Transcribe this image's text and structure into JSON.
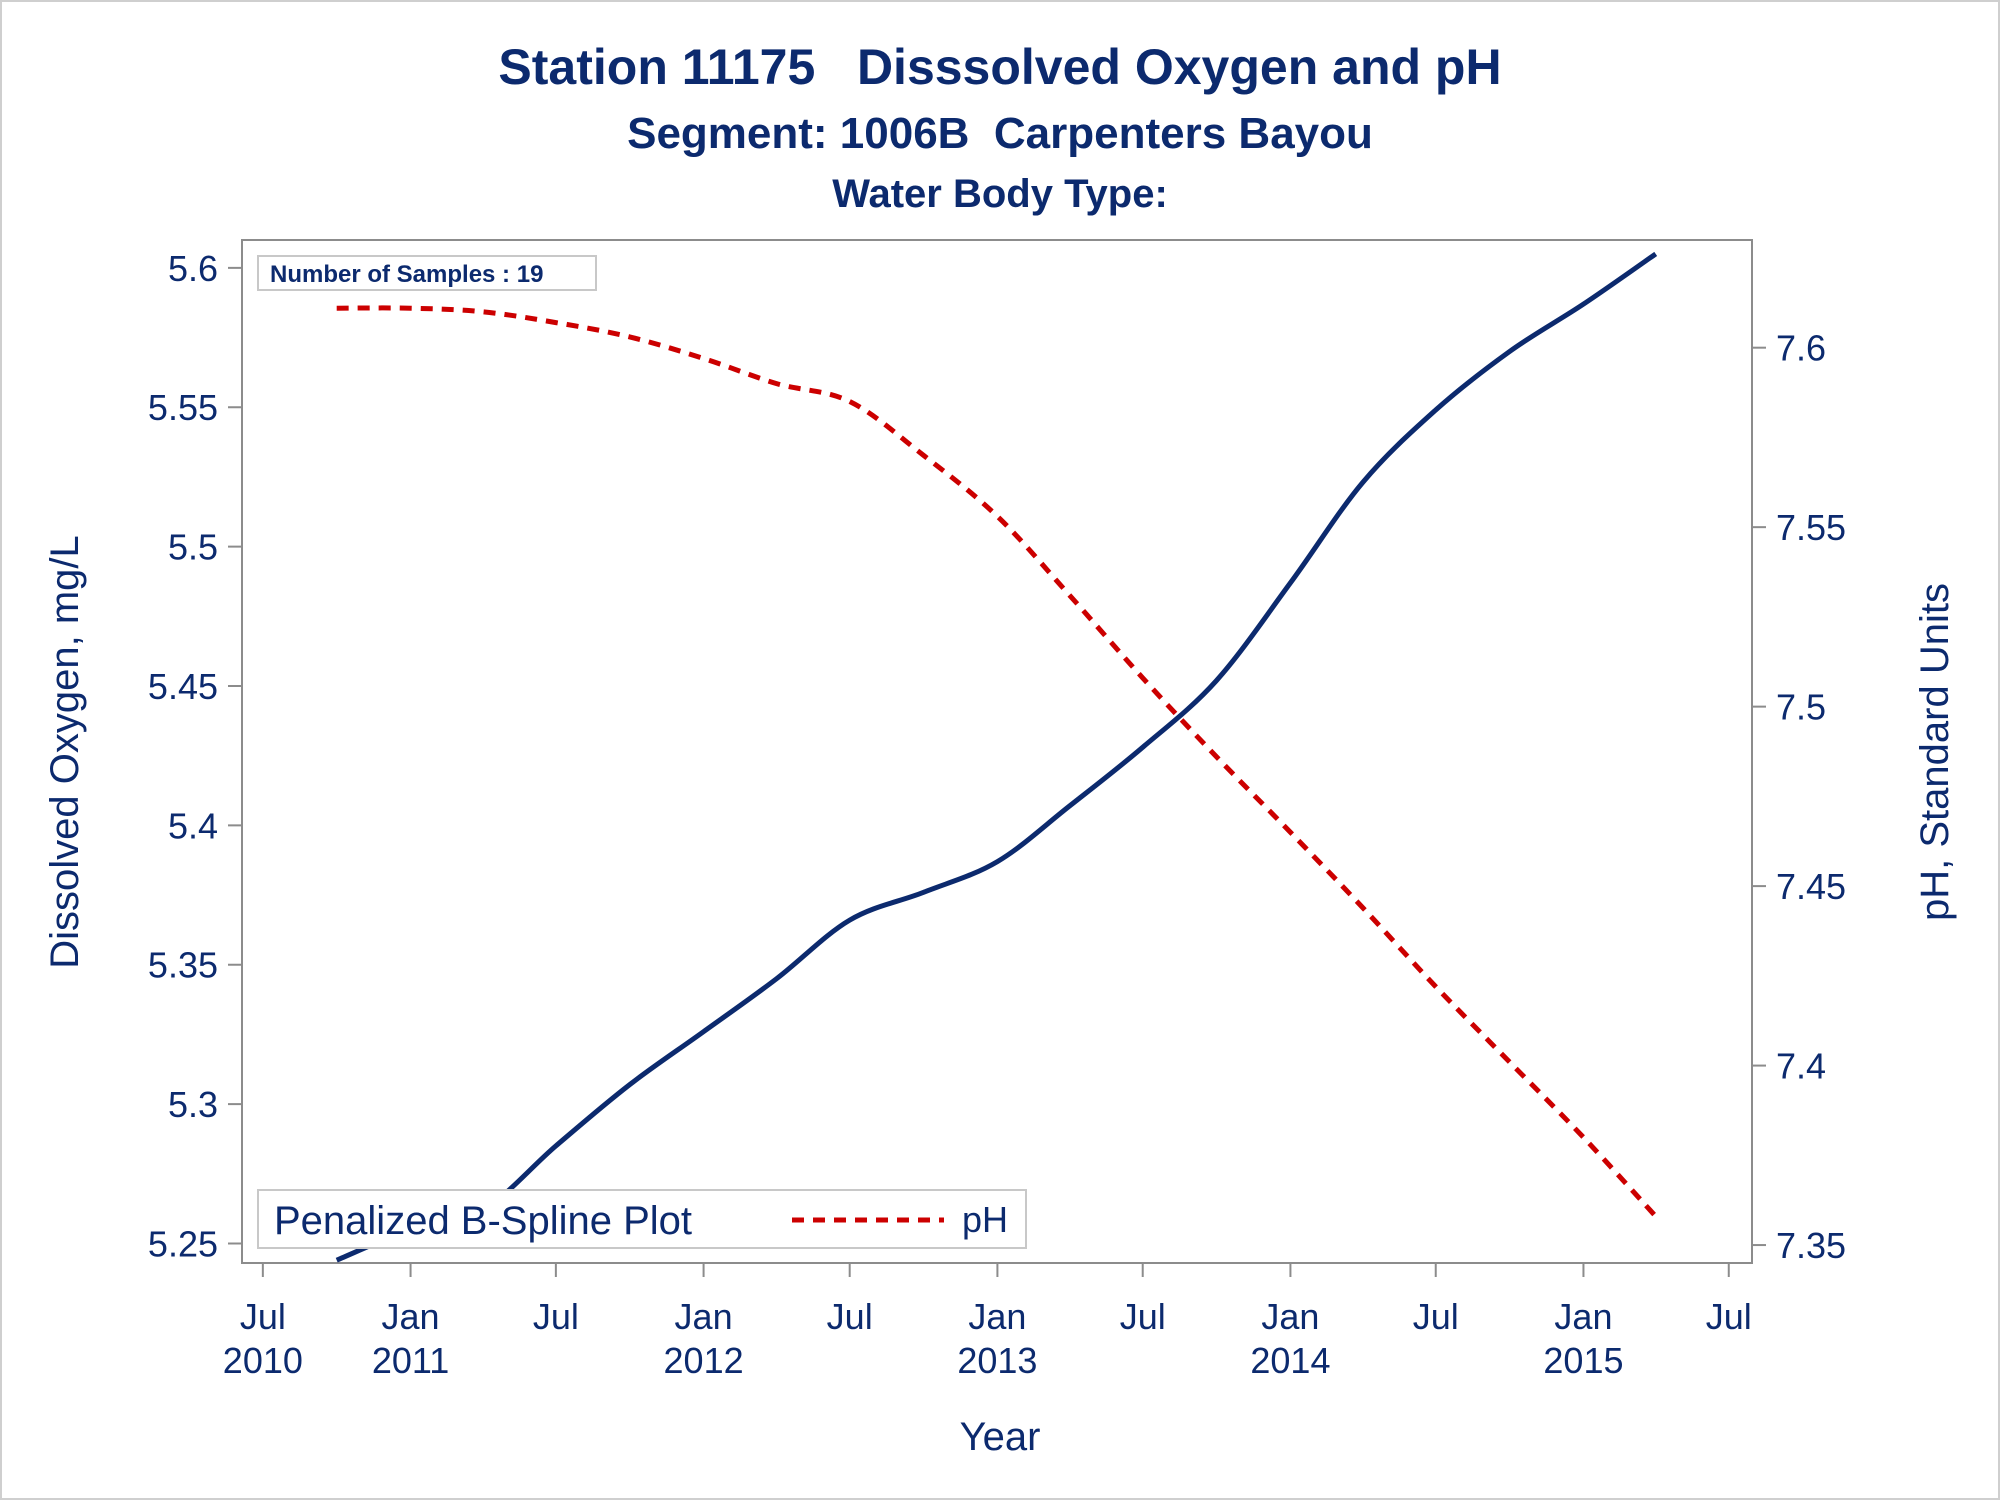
{
  "titles": {
    "main": "Station 11175   Disssolved Oxygen and pH",
    "sub": "Segment: 1006B  Carpenters Bayou",
    "third": "Water Body Type:"
  },
  "inset": {
    "label": "Number of Samples : 19"
  },
  "legend": {
    "title": "Penalized B-Spline Plot",
    "entry": "pH"
  },
  "colors": {
    "do": "#0c2a6e",
    "ph": "#cc0000",
    "axis": "#8c8c8c"
  },
  "chart_data": {
    "type": "line",
    "xlabel": "Year",
    "ylabel_left": "Dissolved Oxygen, mg/L",
    "ylabel_right": "pH, Standard Units",
    "xlim": [
      "2010-06-15",
      "2015-07-15"
    ],
    "ylim_left": [
      5.243,
      5.61
    ],
    "ylim_right": [
      7.345,
      7.63
    ],
    "legend_position": "bottom-left",
    "grid": false,
    "x_ticks": [
      {
        "date": "2010-07-01",
        "line1": "Jul",
        "line2": "2010"
      },
      {
        "date": "2011-01-01",
        "line1": "Jan",
        "line2": "2011"
      },
      {
        "date": "2011-07-01",
        "line1": "Jul",
        "line2": ""
      },
      {
        "date": "2012-01-01",
        "line1": "Jan",
        "line2": "2012"
      },
      {
        "date": "2012-07-01",
        "line1": "Jul",
        "line2": ""
      },
      {
        "date": "2013-01-01",
        "line1": "Jan",
        "line2": "2013"
      },
      {
        "date": "2013-07-01",
        "line1": "Jul",
        "line2": ""
      },
      {
        "date": "2014-01-01",
        "line1": "Jan",
        "line2": "2014"
      },
      {
        "date": "2014-07-01",
        "line1": "Jul",
        "line2": ""
      },
      {
        "date": "2015-01-01",
        "line1": "Jan",
        "line2": "2015"
      },
      {
        "date": "2015-07-01",
        "line1": "Jul",
        "line2": ""
      }
    ],
    "y_ticks_left": [
      "5.25",
      "5.3",
      "5.35",
      "5.4",
      "5.45",
      "5.5",
      "5.55",
      "5.6"
    ],
    "y_ticks_right": [
      "7.35",
      "7.4",
      "7.45",
      "7.5",
      "7.55",
      "7.6"
    ],
    "series": [
      {
        "axis": "left",
        "style": "solid",
        "points": [
          [
            "2010-10-01",
            5.244
          ],
          [
            "2011-01-01",
            5.255
          ],
          [
            "2011-04-01",
            5.262
          ],
          [
            "2011-07-01",
            5.285
          ],
          [
            "2011-10-01",
            5.307
          ],
          [
            "2012-01-01",
            5.326
          ],
          [
            "2012-04-01",
            5.345
          ],
          [
            "2012-07-01",
            5.366
          ],
          [
            "2012-10-01",
            5.376
          ],
          [
            "2013-01-01",
            5.387
          ],
          [
            "2013-04-01",
            5.407
          ],
          [
            "2013-07-01",
            5.428
          ],
          [
            "2013-10-01",
            5.452
          ],
          [
            "2014-01-01",
            5.487
          ],
          [
            "2014-04-01",
            5.523
          ],
          [
            "2014-07-01",
            5.549
          ],
          [
            "2014-10-01",
            5.57
          ],
          [
            "2015-01-01",
            5.587
          ],
          [
            "2015-04-01",
            5.605
          ]
        ]
      },
      {
        "name": "pH",
        "axis": "right",
        "style": "dashed",
        "points": [
          [
            "2010-10-01",
            7.611
          ],
          [
            "2011-01-01",
            7.611
          ],
          [
            "2011-04-01",
            7.61
          ],
          [
            "2011-07-01",
            7.607
          ],
          [
            "2011-10-01",
            7.603
          ],
          [
            "2012-01-01",
            7.597
          ],
          [
            "2012-04-01",
            7.59
          ],
          [
            "2012-07-01",
            7.585
          ],
          [
            "2012-10-01",
            7.57
          ],
          [
            "2013-01-01",
            7.553
          ],
          [
            "2013-04-01",
            7.531
          ],
          [
            "2013-07-01",
            7.508
          ],
          [
            "2013-10-01",
            7.486
          ],
          [
            "2014-01-01",
            7.465
          ],
          [
            "2014-04-01",
            7.444
          ],
          [
            "2014-07-01",
            7.422
          ],
          [
            "2014-10-01",
            7.401
          ],
          [
            "2015-01-01",
            7.38
          ],
          [
            "2015-04-01",
            7.358
          ]
        ]
      }
    ]
  }
}
